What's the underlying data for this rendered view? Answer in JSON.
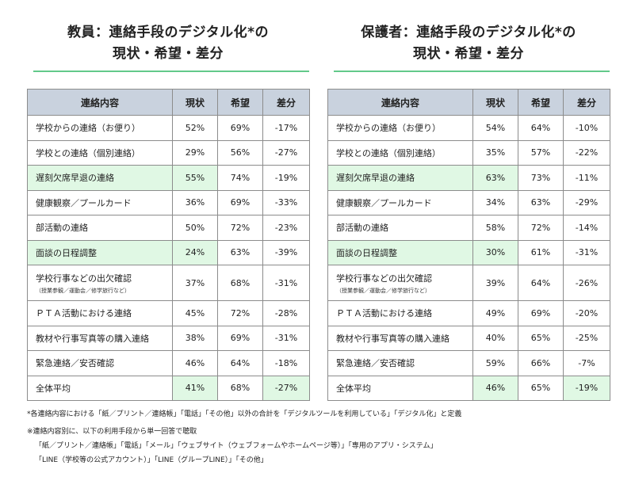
{
  "left": {
    "title_line1": "教員：連絡手段のデジタル化*の",
    "title_line2": "現状・希望・差分",
    "headers": [
      "連絡内容",
      "現状",
      "希望",
      "差分"
    ],
    "rows": [
      {
        "label": "学校からの連絡（お便り）",
        "sub": "",
        "current": "52%",
        "hope": "69%",
        "diff": "-17%"
      },
      {
        "label": "学校との連絡（個別連絡）",
        "sub": "",
        "current": "29%",
        "hope": "56%",
        "diff": "-27%"
      },
      {
        "label": "遅刻欠席早退の連絡",
        "sub": "",
        "current": "55%",
        "hope": "74%",
        "diff": "-19%"
      },
      {
        "label": "健康観察／プールカード",
        "sub": "",
        "current": "36%",
        "hope": "69%",
        "diff": "-33%"
      },
      {
        "label": "部活動の連絡",
        "sub": "",
        "current": "50%",
        "hope": "72%",
        "diff": "-23%"
      },
      {
        "label": "面談の日程調整",
        "sub": "",
        "current": "24%",
        "hope": "63%",
        "diff": "-39%"
      },
      {
        "label": "学校行事などの出欠確認",
        "sub": "（授業参観／運動会／修学旅行など）",
        "current": "37%",
        "hope": "68%",
        "diff": "-31%"
      },
      {
        "label": "ＰＴＡ活動における連絡",
        "sub": "",
        "current": "45%",
        "hope": "72%",
        "diff": "-28%"
      },
      {
        "label": "教材や行事写真等の購入連絡",
        "sub": "",
        "current": "38%",
        "hope": "69%",
        "diff": "-31%"
      },
      {
        "label": "緊急連絡／安否確認",
        "sub": "",
        "current": "46%",
        "hope": "64%",
        "diff": "-18%"
      },
      {
        "label": "全体平均",
        "sub": "",
        "current": "41%",
        "hope": "68%",
        "diff": "-27%"
      }
    ]
  },
  "right": {
    "title_line1": "保護者：連絡手段のデジタル化*の",
    "title_line2": "現状・希望・差分",
    "headers": [
      "連絡内容",
      "現状",
      "希望",
      "差分"
    ],
    "rows": [
      {
        "label": "学校からの連絡（お便り）",
        "sub": "",
        "current": "54%",
        "hope": "64%",
        "diff": "-10%"
      },
      {
        "label": "学校との連絡（個別連絡）",
        "sub": "",
        "current": "35%",
        "hope": "57%",
        "diff": "-22%"
      },
      {
        "label": "遅刻欠席早退の連絡",
        "sub": "",
        "current": "63%",
        "hope": "73%",
        "diff": "-11%"
      },
      {
        "label": "健康観察／プールカード",
        "sub": "",
        "current": "34%",
        "hope": "63%",
        "diff": "-29%"
      },
      {
        "label": "部活動の連絡",
        "sub": "",
        "current": "58%",
        "hope": "72%",
        "diff": "-14%"
      },
      {
        "label": "面談の日程調整",
        "sub": "",
        "current": "30%",
        "hope": "61%",
        "diff": "-31%"
      },
      {
        "label": "学校行事などの出欠確認",
        "sub": "（授業参観／運動会／修学旅行など）",
        "current": "39%",
        "hope": "64%",
        "diff": "-26%"
      },
      {
        "label": "ＰＴＡ活動における連絡",
        "sub": "",
        "current": "49%",
        "hope": "69%",
        "diff": "-20%"
      },
      {
        "label": "教材や行事写真等の購入連絡",
        "sub": "",
        "current": "40%",
        "hope": "65%",
        "diff": "-25%"
      },
      {
        "label": "緊急連絡／安否確認",
        "sub": "",
        "current": "59%",
        "hope": "66%",
        "diff": "-7%"
      },
      {
        "label": "全体平均",
        "sub": "",
        "current": "46%",
        "hope": "65%",
        "diff": "-19%"
      }
    ]
  },
  "notes": {
    "note1": "*各連絡内容における「紙／プリント／連絡帳」「電話」「その他」以外の合計を「デジタルツールを利用している」「デジタル化」と定義",
    "note2": "※連絡内容別に、以下の利用手段から単一回答で聴取",
    "note3": "「紙／プリント／連絡帳」「電話」「メール」「ウェブサイト（ウェブフォームやホームページ等）」「専用のアプリ・システム」",
    "note4": "「LINE（学校等の公式アカウント）」「LINE（グループLINE）」「その他」"
  },
  "colors": {
    "header_bg": "#c9d2de",
    "highlight_green": "#e0f8e4",
    "title_rule": "#62c98a"
  }
}
